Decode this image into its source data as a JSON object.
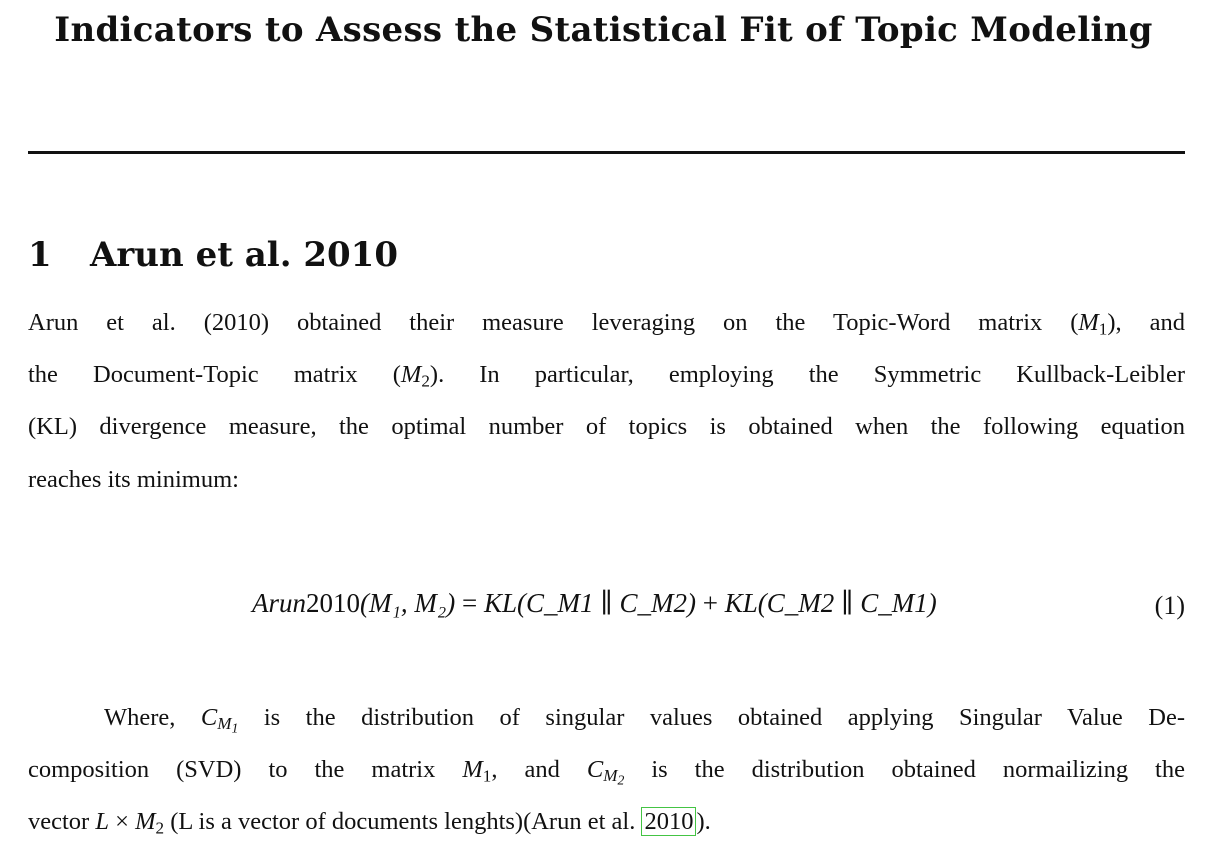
{
  "title": "Indicators to Assess the Statistical Fit of Topic Modeling",
  "section": {
    "number": "1",
    "heading": "Arun et al. 2010"
  },
  "paragraph1": {
    "l1a": "Arun et al.  (2010) obtained their measure leveraging on the Topic-Word matrix (",
    "l1m": "M",
    "l1s": "1",
    "l1b": "), and",
    "l2a": "the Document-Topic matrix (",
    "l2m": "M",
    "l2s": "2",
    "l2b": ").  In particular, employing the Symmetric Kullback-Leibler",
    "l3": "(KL) divergence measure, the optimal number of topics is obtained when the following equation",
    "l4": "reaches its minimum:"
  },
  "equation": {
    "lhs_name": "Arun",
    "lhs_year": "2010",
    "args": "(M₁, M₂)",
    "equals": " = ",
    "kl": "KL",
    "rhs1": "(C_M1 ∥ C_M2)",
    "plus": " + ",
    "rhs2": "(C_M2 ∥ C_M1)",
    "number": "(1)"
  },
  "paragraph2": {
    "l1a": "Where, ",
    "l1b": " is the distribution of singular values obtained applying Singular Value De-",
    "l2a": "composition (SVD) to the matrix ",
    "l2b": ", and ",
    "l2c": " is the distribution obtained normailizing the",
    "l3a": "vector ",
    "l3b": " (L is a vector of documents lenghts)(Arun et al. ",
    "l3cite": "2010",
    "l3c": ")."
  }
}
